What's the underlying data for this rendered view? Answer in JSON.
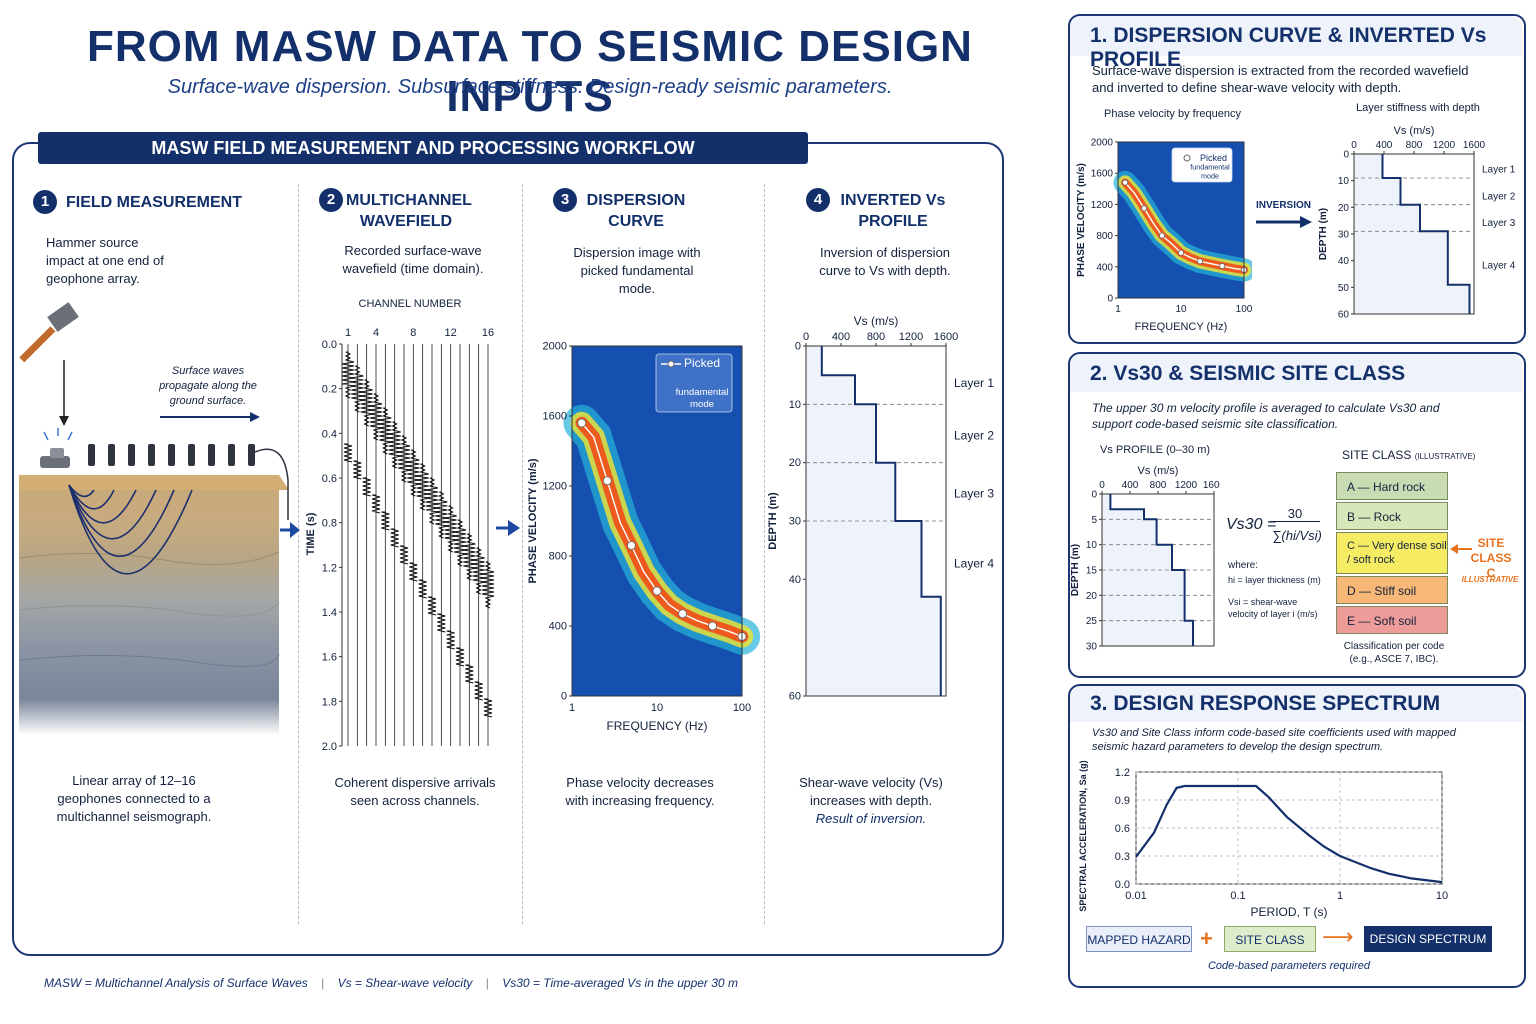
{
  "header": {
    "title": "FROM MASW DATA TO SEISMIC DESIGN INPUTS",
    "subtitle": "Surface-wave dispersion. Subsurface stiffness. Design-ready seismic parameters."
  },
  "workflow": {
    "banner": "MASW FIELD MEASUREMENT AND PROCESSING WORKFLOW",
    "steps": [
      {
        "num": "1",
        "title": "FIELD MEASUREMENT",
        "desc": "Hammer source impact at one end of geophone array.",
        "bottom": "Linear array of 12–16 geophones connected to a multichannel seismograph.",
        "wave_note": "Surface waves propagate along the ground surface."
      },
      {
        "num": "2",
        "title": "MULTICHANNEL WAVEFIELD",
        "desc": "Recorded surface-wave wavefield (time domain).",
        "bottom": "Coherent dispersive arrivals seen across channels.",
        "chart_label": "CHANNEL NUMBER"
      },
      {
        "num": "3",
        "title": "DISPERSION CURVE",
        "desc": "Dispersion image with picked fundamental mode.",
        "bottom": "Phase velocity decreases with increasing frequency.",
        "legend": "Picked",
        "legend_sub": "fundamental mode"
      },
      {
        "num": "4",
        "title": "INVERTED Vs PROFILE",
        "desc": "Inversion of dispersion curve to Vs with depth.",
        "bottom": "Shear-wave velocity (Vs) increases with depth.",
        "bottom_italic": "Result of inversion."
      }
    ]
  },
  "panel1": {
    "title": "1. DISPERSION CURVE & INVERTED Vs PROFILE",
    "text": "Surface-wave dispersion is extracted from the recorded wavefield and inverted to define shear-wave velocity with depth.",
    "left_caption": "Phase velocity by frequency",
    "right_caption": "Layer stiffness with depth",
    "arrow_label": "INVERSION",
    "legend": "Picked",
    "legend_sub": "fundamental mode"
  },
  "panel2": {
    "title": "2. Vs30 & SEISMIC SITE CLASS",
    "text": "The upper 30 m velocity profile is averaged to calculate Vs30 and support code-based seismic site classification.",
    "profile_title": "Vs PROFILE (0–30 m)",
    "formula_lhs": "Vs30 =",
    "formula_num": "30",
    "formula_den": "∑(hi/Vsi)",
    "where": "where:",
    "hi_def": "hi = layer thickness (m)",
    "vsi_def": "Vsi = shear-wave velocity of layer i (m/s)",
    "site_class_title": "SITE CLASS",
    "site_class_sub": "(ILLUSTRATIVE)",
    "classes": [
      {
        "label": "A — Hard rock",
        "color": "#c9dbb3"
      },
      {
        "label": "B — Rock",
        "color": "#d8e7b9"
      },
      {
        "label": "C — Very dense soil / soft rock",
        "color": "#f5ec63"
      },
      {
        "label": "D — Stiff soil",
        "color": "#f6b777"
      },
      {
        "label": "E — Soft soil",
        "color": "#ee9c9a"
      }
    ],
    "selected_label": "SITE CLASS C",
    "selected_sub": "ILLUSTRATIVE",
    "code_note": "Classification per code (e.g., ASCE 7, IBC)."
  },
  "panel3": {
    "title": "3. DESIGN RESPONSE SPECTRUM",
    "text": "Vs30 and Site Class inform code-based site coefficients used with mapped seismic hazard parameters to develop the design spectrum.",
    "ylabel": "SPECTRAL ACCELERATION, Sa (g)",
    "xlabel": "PERIOD, T (s)",
    "tags": [
      "MAPPED HAZARD",
      "SITE CLASS",
      "DESIGN SPECTRUM"
    ],
    "plus": "+",
    "arrow": "⟶",
    "note": "Code-based parameters required"
  },
  "footer": {
    "masw": "MASW = Multichannel Analysis of Surface Waves",
    "vs": "Vs = Shear-wave velocity",
    "vs30": "Vs30 = Time-averaged Vs in the upper 30 m",
    "divider": "|"
  },
  "chart_data": [
    {
      "type": "line",
      "id": "wavefield",
      "title": "",
      "xlabel": "CHANNEL NUMBER",
      "ylabel": "TIME (s)",
      "x_ticks": [
        "1",
        "4",
        "8",
        "12",
        "16"
      ],
      "y_ticks": [
        "0.0",
        "0.2",
        "0.4",
        "0.6",
        "0.8",
        "1.2",
        "1.4",
        "1.6",
        "1.8",
        "2.0"
      ],
      "channels": 16
    },
    {
      "type": "line",
      "id": "dispersion_main",
      "xlabel": "FREQUENCY (Hz)",
      "ylabel": "PHASE VELOCITY (m/s)",
      "x_scale": "log",
      "xlim": [
        1,
        100
      ],
      "ylim": [
        0,
        2000
      ],
      "x_ticks": [
        "1",
        "10",
        "100"
      ],
      "y_ticks": [
        "0",
        "400",
        "800",
        "1200",
        "1600",
        "2000"
      ],
      "series": [
        {
          "name": "Picked fundamental mode",
          "x": [
            1.3,
            1.8,
            2.6,
            3.7,
            5.0,
            7.0,
            10,
            14,
            20,
            30,
            45,
            70,
            100
          ],
          "y": [
            1560,
            1480,
            1230,
            990,
            860,
            710,
            600,
            520,
            470,
            430,
            400,
            370,
            340
          ]
        }
      ]
    },
    {
      "type": "line",
      "id": "vs_main",
      "xlabel": "Vs (m/s)",
      "ylabel": "DEPTH (m)",
      "xlim": [
        0,
        1600
      ],
      "ylim": [
        0,
        60
      ],
      "x_ticks": [
        "0",
        "400",
        "800",
        "1200",
        "1600"
      ],
      "y_ticks": [
        "0",
        "10",
        "20",
        "30",
        "40",
        "60"
      ],
      "layers": [
        "Layer 1",
        "Layer 2",
        "Layer 3",
        "Layer 4"
      ],
      "series": [
        {
          "name": "Vs",
          "depth": [
            0,
            5,
            5,
            10,
            10,
            20,
            20,
            30,
            30,
            43,
            43,
            60
          ],
          "vs": [
            180,
            180,
            560,
            560,
            800,
            800,
            1020,
            1020,
            1320,
            1320,
            1540,
            1540
          ]
        }
      ]
    },
    {
      "type": "line",
      "id": "dispersion_small",
      "xlabel": "FREQUENCY (Hz)",
      "ylabel": "PHASE VELOCITY (m/s)",
      "x_scale": "log",
      "xlim": [
        1,
        100
      ],
      "ylim": [
        0,
        2000
      ],
      "x_ticks": [
        "1",
        "10",
        "100"
      ],
      "y_ticks": [
        "0",
        "400",
        "800",
        "1200",
        "1600",
        "2000"
      ],
      "series": [
        {
          "name": "Picked fundamental mode",
          "x": [
            1.3,
            1.8,
            2.6,
            3.7,
            5.0,
            7.0,
            10,
            14,
            20,
            30,
            45,
            70,
            100
          ],
          "y": [
            1480,
            1350,
            1150,
            950,
            800,
            700,
            580,
            520,
            470,
            440,
            410,
            380,
            360
          ]
        }
      ]
    },
    {
      "type": "line",
      "id": "vs_small",
      "xlabel": "Vs (m/s)",
      "ylabel": "DEPTH (m)",
      "xlim": [
        0,
        1600
      ],
      "ylim": [
        0,
        60
      ],
      "x_ticks": [
        "0",
        "400",
        "800",
        "1200",
        "1600"
      ],
      "y_ticks": [
        "0",
        "10",
        "20",
        "30",
        "40",
        "50",
        "60"
      ],
      "layers": [
        "Layer 1",
        "Layer 2",
        "Layer 3",
        "Layer 4"
      ],
      "series": [
        {
          "name": "Vs",
          "depth": [
            0,
            9,
            9,
            19,
            19,
            29,
            29,
            49,
            49,
            60
          ],
          "vs": [
            380,
            380,
            620,
            620,
            880,
            880,
            1250,
            1250,
            1540,
            1540
          ]
        }
      ]
    },
    {
      "type": "line",
      "id": "vs30",
      "xlabel": "Vs (m/s)",
      "ylabel": "DEPTH (m)",
      "xlim": [
        0,
        1600
      ],
      "ylim": [
        0,
        30
      ],
      "x_ticks": [
        "0",
        "400",
        "800",
        "1200",
        "1600"
      ],
      "y_ticks": [
        "0",
        "5",
        "10",
        "15",
        "20",
        "25",
        "30"
      ],
      "series": [
        {
          "name": "Vs",
          "depth": [
            0,
            3,
            3,
            5,
            5,
            10,
            10,
            15,
            15,
            25,
            25,
            30
          ],
          "vs": [
            120,
            120,
            600,
            600,
            780,
            780,
            1000,
            1000,
            1180,
            1180,
            1300,
            1300
          ]
        }
      ]
    },
    {
      "type": "line",
      "id": "spectrum",
      "xlabel": "PERIOD, T (s)",
      "ylabel": "SPECTRAL ACCELERATION, Sa (g)",
      "x_scale": "log",
      "xlim": [
        0.01,
        10
      ],
      "ylim": [
        0,
        1.2
      ],
      "x_ticks": [
        "0.01",
        "0.1",
        "1",
        "10"
      ],
      "y_ticks": [
        "0.0",
        "0.3",
        "0.6",
        "0.9",
        "1.2"
      ],
      "series": [
        {
          "name": "Design spectrum",
          "x": [
            0.01,
            0.015,
            0.02,
            0.025,
            0.03,
            0.15,
            0.2,
            0.3,
            0.5,
            0.7,
            1,
            2,
            3,
            5,
            10
          ],
          "y": [
            0.29,
            0.55,
            0.85,
            1.03,
            1.05,
            1.05,
            0.93,
            0.72,
            0.52,
            0.4,
            0.3,
            0.17,
            0.11,
            0.06,
            0.02
          ]
        }
      ]
    }
  ]
}
